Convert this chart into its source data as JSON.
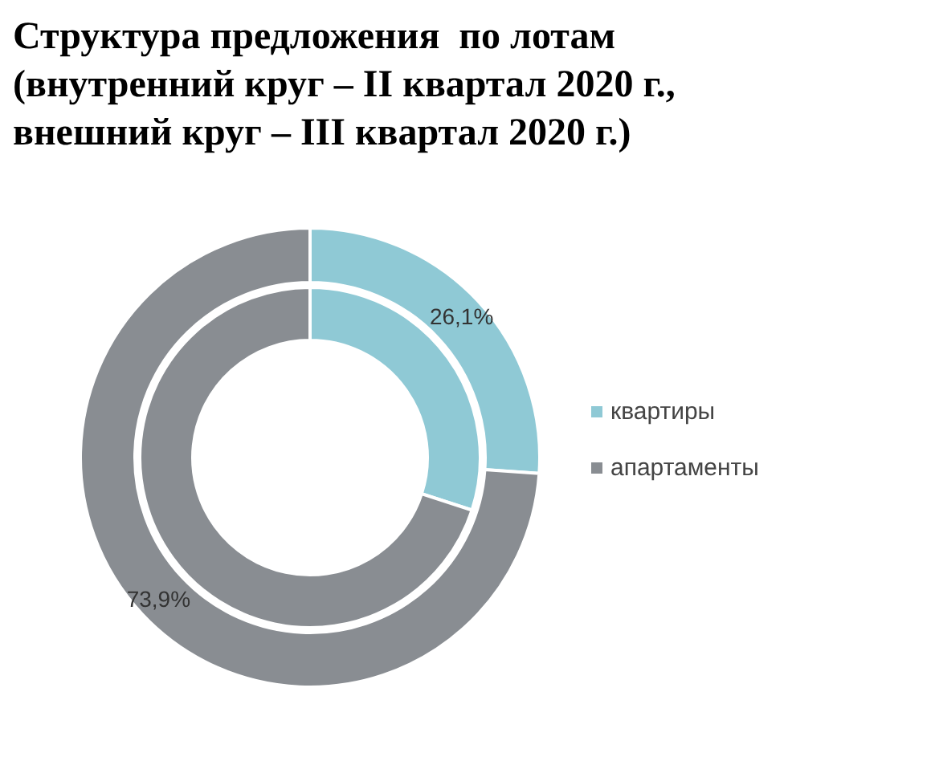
{
  "chart_data": {
    "type": "donut",
    "title": "Структура предложения  по лотам\n(внутренний круг – II квартал 2020 г.,\nвнешний круг – III квартал 2020 г.)",
    "categories": [
      "квартиры",
      "апартаменты"
    ],
    "colors": [
      "#8fc9d5",
      "#898d92"
    ],
    "series": [
      {
        "values": [
          30,
          70
        ]
      },
      {
        "values": [
          26.1,
          73.9
        ],
        "value_labels": [
          "26,1%",
          "73,9%"
        ]
      }
    ],
    "legend": "right"
  }
}
